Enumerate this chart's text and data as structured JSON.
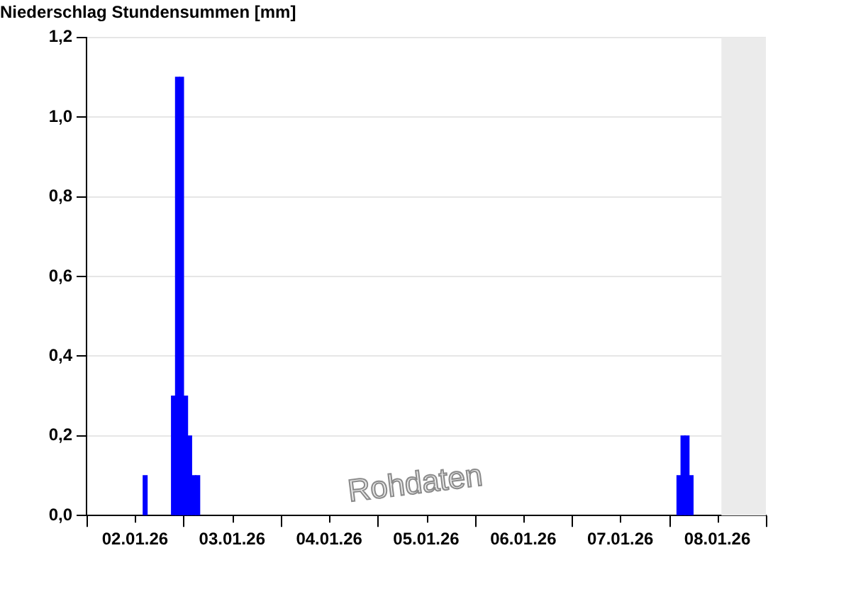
{
  "chart_data": {
    "type": "bar",
    "title": "Niederschlag Stundensummen [mm]",
    "x": [
      "--01-02T14:30",
      "--01-02T21:30",
      "--01-02T22:30",
      "--01-02T23:30",
      "--01-03T00:30",
      "--01-03T01:30",
      "--01-03T02:30",
      "--01-03T03:30",
      "--01-08T02:30",
      "--01-08T03:30",
      "--01-08T04:30",
      "--01-08T05:30"
    ],
    "values": [
      0.1,
      0.3,
      1.1,
      1.1,
      0.3,
      0.2,
      0.1,
      0.1,
      0.1,
      0.2,
      0.2,
      0.1
    ],
    "color": "#0000ff",
    "xlim": [
      "--01-02",
      "--01-09"
    ],
    "xticks": [
      {
        "value": "--01-02",
        "label": null
      },
      {
        "value": "--01-02T12:00",
        "label": "02.01.26"
      },
      {
        "value": "--01-03",
        "label": null
      },
      {
        "value": "--01-03T12:00",
        "label": "03.01.26"
      },
      {
        "value": "--01-04",
        "label": null
      },
      {
        "value": "--01-04T12:00",
        "label": "04.01.26"
      },
      {
        "value": "--01-05",
        "label": null
      },
      {
        "value": "--01-05T12:00",
        "label": "05.01.26"
      },
      {
        "value": "--01-06",
        "label": null
      },
      {
        "value": "--01-06T12:00",
        "label": "06.01.26"
      },
      {
        "value": "--01-07",
        "label": null
      },
      {
        "value": "--01-07T12:00",
        "label": "07.01.26"
      },
      {
        "value": "--01-08",
        "label": null
      },
      {
        "value": "--01-08T12:00",
        "label": "08.01.26"
      },
      {
        "value": "--01-09",
        "label": null
      }
    ],
    "ylim": [
      0,
      1.2
    ],
    "yticks": [
      {
        "value": 0,
        "label": "0,0"
      },
      {
        "value": 0.2,
        "label": "0,2"
      },
      {
        "value": 0.4,
        "label": "0,4"
      },
      {
        "value": 0.6,
        "label": "0,6"
      },
      {
        "value": 0.8,
        "label": "0,8"
      },
      {
        "value": 1.0,
        "label": "1,0"
      },
      {
        "value": 1.2,
        "label": "1,2"
      }
    ],
    "bands": [
      {
        "axis": "x",
        "from": "--01-08T13:00",
        "to": "--01-09",
        "color": "#ebebeb"
      }
    ],
    "annotations": [
      "Rohdaten"
    ],
    "grid": "y"
  }
}
